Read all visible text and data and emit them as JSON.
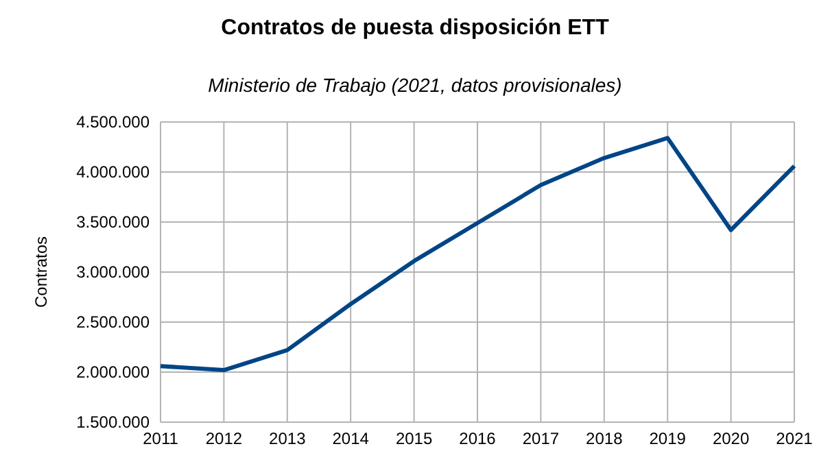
{
  "chart_data": {
    "type": "line",
    "title": "Contratos de puesta disposición ETT",
    "subtitle": "Ministerio de Trabajo (2021, datos provisionales)",
    "ylabel": "Contratos",
    "categories": [
      "2011",
      "2012",
      "2013",
      "2014",
      "2015",
      "2016",
      "2017",
      "2018",
      "2019",
      "2020",
      "2021"
    ],
    "series": [
      {
        "color": "#004586",
        "values": [
          2060000,
          2020000,
          2220000,
          2680000,
          3110000,
          3490000,
          3870000,
          4140000,
          4340000,
          3420000,
          4060000
        ]
      }
    ],
    "ylim": [
      1500000,
      4500000
    ],
    "yticks": [
      {
        "value": 1500000,
        "label": "1.500.000"
      },
      {
        "value": 2000000,
        "label": "2.000.000"
      },
      {
        "value": 2500000,
        "label": "2.500.000"
      },
      {
        "value": 3000000,
        "label": "3.000.000"
      },
      {
        "value": 3500000,
        "label": "3.500.000"
      },
      {
        "value": 4000000,
        "label": "4.000.000"
      },
      {
        "value": 4500000,
        "label": "4.500.000"
      }
    ],
    "grid": true,
    "marker": "none",
    "line_style": "solid"
  }
}
